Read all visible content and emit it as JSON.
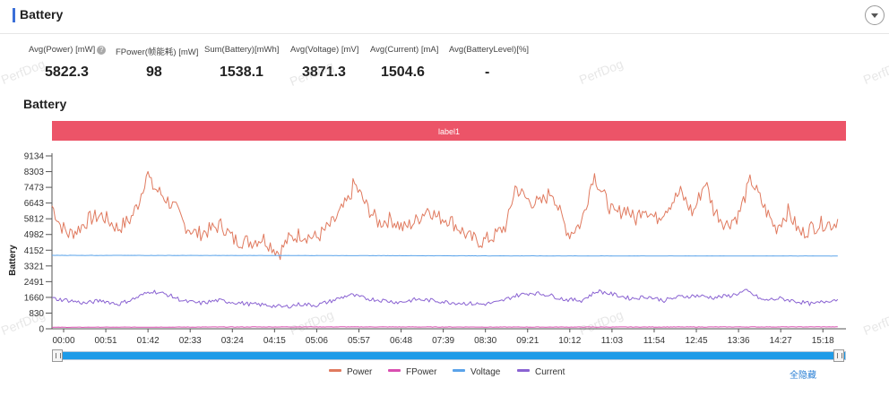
{
  "header": {
    "title": "Battery"
  },
  "stats": [
    {
      "label": "Avg(Power) [mW]",
      "value": "5822.3",
      "help": true
    },
    {
      "label": "FPower(帧能耗) [mW]",
      "value": "98"
    },
    {
      "label": "Sum(Battery)[mWh]",
      "value": "1538.1"
    },
    {
      "label": "Avg(Voltage) [mV]",
      "value": "3871.3"
    },
    {
      "label": "Avg(Current) [mA]",
      "value": "1504.6"
    },
    {
      "label": "Avg(BatteryLevel)[%]",
      "value": "-"
    }
  ],
  "watermark": "PerfDog",
  "hide_all_label": "全隐藏",
  "colors": {
    "power": "#e07a5f",
    "fpower": "#d94fb0",
    "voltage": "#5aa3ea",
    "current": "#8a63d2",
    "label_band": "#ec5468"
  },
  "chart_data": {
    "type": "line",
    "title": "Battery",
    "ylabel": "Battery",
    "xlabel": "",
    "band_label": "label1",
    "ylim": [
      0,
      9134
    ],
    "y_ticks": [
      0,
      830,
      1660,
      2491,
      3321,
      4152,
      4982,
      5812,
      6643,
      7473,
      8303,
      9134
    ],
    "x_ticks": [
      "00:00",
      "00:51",
      "01:42",
      "02:33",
      "03:24",
      "04:15",
      "05:06",
      "05:57",
      "06:48",
      "07:39",
      "08:30",
      "09:21",
      "10:12",
      "11:03",
      "11:54",
      "12:45",
      "13:36",
      "14:27",
      "15:18"
    ],
    "duration_seconds": 960,
    "series": [
      {
        "name": "Power",
        "color": "#e07a5f",
        "keypoints": [
          [
            0,
            6500
          ],
          [
            10,
            5500
          ],
          [
            20,
            5000
          ],
          [
            30,
            5200
          ],
          [
            45,
            5800
          ],
          [
            60,
            6000
          ],
          [
            80,
            5300
          ],
          [
            95,
            5800
          ],
          [
            105,
            6700
          ],
          [
            115,
            8300
          ],
          [
            120,
            7600
          ],
          [
            135,
            7000
          ],
          [
            150,
            6300
          ],
          [
            160,
            5500
          ],
          [
            175,
            5000
          ],
          [
            190,
            5200
          ],
          [
            205,
            5500
          ],
          [
            220,
            4700
          ],
          [
            240,
            4600
          ],
          [
            255,
            4800
          ],
          [
            265,
            4400
          ],
          [
            275,
            4000
          ],
          [
            285,
            4700
          ],
          [
            300,
            5000
          ],
          [
            320,
            4800
          ],
          [
            340,
            5600
          ],
          [
            360,
            6900
          ],
          [
            365,
            7700
          ],
          [
            380,
            6500
          ],
          [
            395,
            5600
          ],
          [
            410,
            5800
          ],
          [
            425,
            5300
          ],
          [
            440,
            5700
          ],
          [
            455,
            6400
          ],
          [
            465,
            5900
          ],
          [
            480,
            5800
          ],
          [
            495,
            5200
          ],
          [
            505,
            4800
          ],
          [
            520,
            4600
          ],
          [
            535,
            4900
          ],
          [
            550,
            5500
          ],
          [
            560,
            7500
          ],
          [
            575,
            6800
          ],
          [
            590,
            6600
          ],
          [
            605,
            7300
          ],
          [
            615,
            6000
          ],
          [
            625,
            5000
          ],
          [
            640,
            5600
          ],
          [
            655,
            8200
          ],
          [
            665,
            7200
          ],
          [
            680,
            6000
          ],
          [
            695,
            6400
          ],
          [
            705,
            5700
          ],
          [
            715,
            6500
          ],
          [
            730,
            5800
          ],
          [
            745,
            6500
          ],
          [
            760,
            7200
          ],
          [
            775,
            6100
          ],
          [
            790,
            7800
          ],
          [
            800,
            6300
          ],
          [
            815,
            5500
          ],
          [
            830,
            6000
          ],
          [
            845,
            7900
          ],
          [
            860,
            6500
          ],
          [
            875,
            5300
          ],
          [
            890,
            6200
          ],
          [
            905,
            5000
          ],
          [
            920,
            5400
          ],
          [
            935,
            5600
          ],
          [
            945,
            5500
          ],
          [
            950,
            5800
          ]
        ]
      },
      {
        "name": "FPower",
        "color": "#d94fb0",
        "keypoints": [
          [
            0,
            80
          ],
          [
            300,
            100
          ],
          [
            600,
            90
          ],
          [
            950,
            100
          ]
        ]
      },
      {
        "name": "Voltage",
        "color": "#5aa3ea",
        "keypoints": [
          [
            0,
            3880
          ],
          [
            300,
            3870
          ],
          [
            600,
            3850
          ],
          [
            950,
            3845
          ]
        ]
      },
      {
        "name": "Current",
        "color": "#8a63d2",
        "keypoints": [
          [
            0,
            1600
          ],
          [
            20,
            1500
          ],
          [
            40,
            1350
          ],
          [
            60,
            1500
          ],
          [
            80,
            1300
          ],
          [
            100,
            1600
          ],
          [
            120,
            2000
          ],
          [
            140,
            1800
          ],
          [
            160,
            1450
          ],
          [
            180,
            1350
          ],
          [
            200,
            1500
          ],
          [
            220,
            1400
          ],
          [
            240,
            1300
          ],
          [
            260,
            1250
          ],
          [
            280,
            1150
          ],
          [
            300,
            1300
          ],
          [
            320,
            1250
          ],
          [
            340,
            1500
          ],
          [
            360,
            1800
          ],
          [
            380,
            1600
          ],
          [
            400,
            1500
          ],
          [
            420,
            1400
          ],
          [
            440,
            1550
          ],
          [
            460,
            1500
          ],
          [
            480,
            1400
          ],
          [
            500,
            1350
          ],
          [
            520,
            1300
          ],
          [
            540,
            1400
          ],
          [
            560,
            1750
          ],
          [
            580,
            1900
          ],
          [
            600,
            1800
          ],
          [
            620,
            1550
          ],
          [
            640,
            1500
          ],
          [
            660,
            2000
          ],
          [
            680,
            1800
          ],
          [
            700,
            1600
          ],
          [
            720,
            1700
          ],
          [
            740,
            1500
          ],
          [
            760,
            1700
          ],
          [
            780,
            1750
          ],
          [
            800,
            1650
          ],
          [
            820,
            1750
          ],
          [
            840,
            2000
          ],
          [
            860,
            1500
          ],
          [
            880,
            1600
          ],
          [
            900,
            1450
          ],
          [
            920,
            1300
          ],
          [
            940,
            1500
          ],
          [
            950,
            1550
          ]
        ]
      }
    ]
  }
}
